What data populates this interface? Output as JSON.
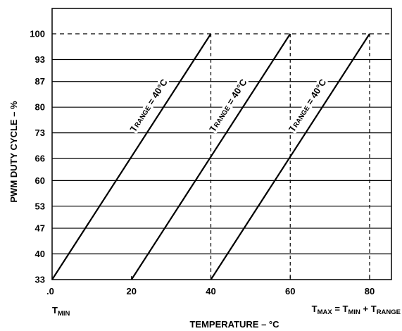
{
  "chart_data": {
    "type": "line",
    "xlabel": "TEMPERATURE – °C",
    "ylabel": "PWM DUTY CYCLE – %",
    "xlim": [
      0,
      85
    ],
    "ylim": [
      33,
      100
    ],
    "x_ticks": [
      0,
      20,
      40,
      60,
      80
    ],
    "x_tick_labels": [
      ".0",
      "20",
      "40",
      "60",
      "80"
    ],
    "y_ticks": [
      33,
      40,
      47,
      53,
      60,
      66,
      73,
      80,
      87,
      93,
      100
    ],
    "grid": "horizontal",
    "line_color": "#000000",
    "series": [
      {
        "label": {
          "main": "T",
          "sub": "RANGE",
          "rest": " = 40°C"
        },
        "points": [
          [
            0,
            33
          ],
          [
            40,
            100
          ]
        ]
      },
      {
        "label": {
          "main": "T",
          "sub": "RANGE",
          "rest": " = 40°C"
        },
        "points": [
          [
            20,
            33
          ],
          [
            60,
            100
          ]
        ]
      },
      {
        "label": {
          "main": "T",
          "sub": "RANGE",
          "rest": " = 40°C"
        },
        "points": [
          [
            40,
            33
          ],
          [
            80,
            100
          ]
        ]
      }
    ],
    "dashed_verticals": [
      40,
      60,
      80
    ],
    "annotations": {
      "tmin": {
        "main": "T",
        "sub": "MIN"
      },
      "tmax": [
        {
          "main": "T",
          "sub": "MAX"
        },
        {
          "text": " = "
        },
        {
          "main": "T",
          "sub": "MIN"
        },
        {
          "text": " + "
        },
        {
          "main": "T",
          "sub": "RANGE"
        }
      ]
    }
  }
}
